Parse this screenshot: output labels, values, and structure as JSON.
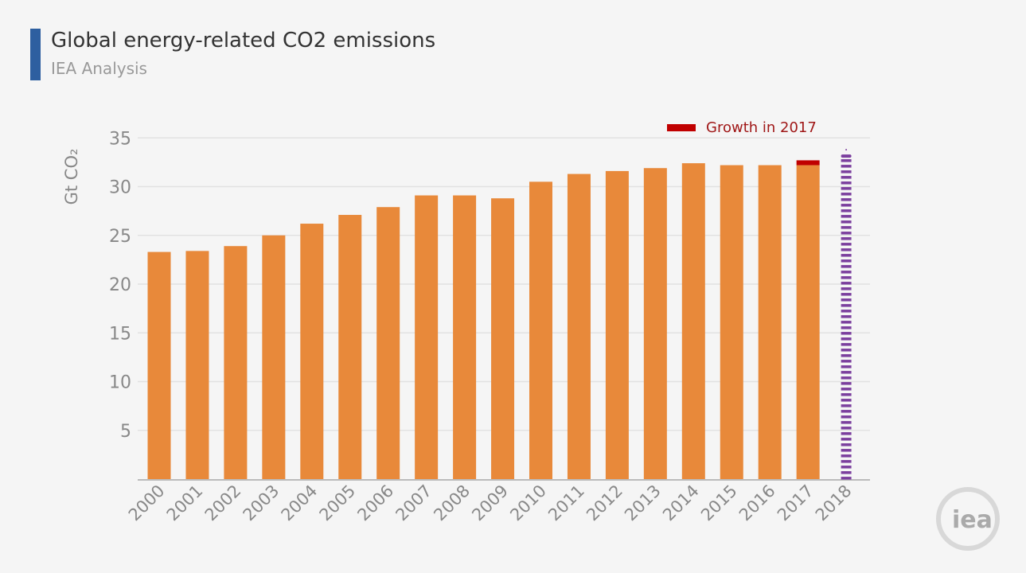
{
  "header": {
    "title": "Global energy-related CO2 emissions",
    "subtitle": "IEA Analysis"
  },
  "logo_text": "iea",
  "chart_data": {
    "type": "bar",
    "ylabel": "Gt CO₂",
    "ylim": [
      0,
      35
    ],
    "yticks": [
      5,
      10,
      15,
      20,
      25,
      30,
      35
    ],
    "grid": true,
    "legend_position": "top-right",
    "categories": [
      "2000",
      "2001",
      "2002",
      "2003",
      "2004",
      "2005",
      "2006",
      "2007",
      "2008",
      "2009",
      "2010",
      "2011",
      "2012",
      "2013",
      "2014",
      "2015",
      "2016",
      "2017",
      "2018"
    ],
    "series": [
      {
        "style": "solid",
        "color": "#e8893a",
        "values": [
          23.3,
          23.4,
          23.9,
          25.0,
          26.2,
          27.1,
          27.9,
          29.1,
          29.1,
          28.8,
          30.5,
          31.3,
          31.6,
          31.9,
          32.4,
          32.2,
          32.2,
          32.2,
          null
        ]
      },
      {
        "name": "Growth in 2017",
        "style": "solid",
        "color": "#c00000",
        "values": [
          null,
          null,
          null,
          null,
          null,
          null,
          null,
          null,
          null,
          null,
          null,
          null,
          null,
          null,
          null,
          null,
          null,
          0.5,
          null
        ]
      },
      {
        "style": "dashed",
        "color": "#7b3f9e",
        "values": [
          null,
          null,
          null,
          null,
          null,
          null,
          null,
          null,
          null,
          null,
          null,
          null,
          null,
          null,
          null,
          null,
          null,
          null,
          33.3
        ]
      }
    ]
  }
}
